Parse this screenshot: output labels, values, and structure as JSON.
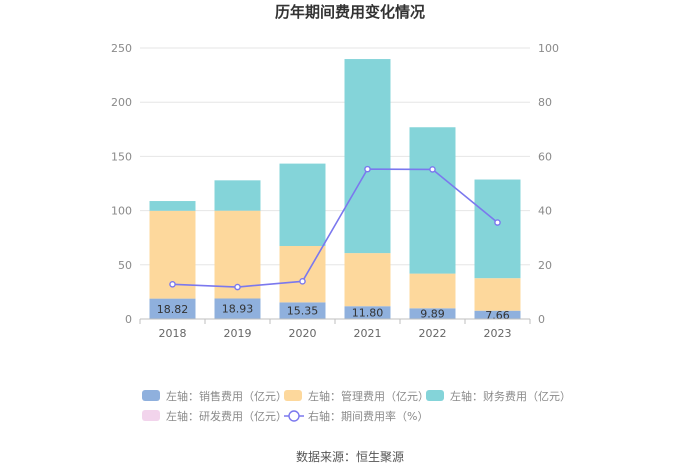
{
  "chart_data": {
    "type": "bar",
    "stacked": true,
    "title": "历年期间费用变化情况",
    "categories": [
      "2018",
      "2019",
      "2020",
      "2021",
      "2022",
      "2023"
    ],
    "left_axis": {
      "min": 0,
      "max": 250,
      "ticks": [
        0,
        50,
        100,
        150,
        200,
        250
      ]
    },
    "right_axis": {
      "min": 0,
      "max": 100,
      "ticks": [
        0,
        20,
        40,
        60,
        80,
        100
      ]
    },
    "series": [
      {
        "name": "销售费用",
        "legend": "左轴：销售费用（亿元）",
        "axis": "left",
        "color": "#8fb0dd",
        "values": [
          18.82,
          18.93,
          15.35,
          11.8,
          9.89,
          7.66
        ],
        "labels": [
          "18.82",
          "18.93",
          "15.35",
          "11.80",
          "9.89",
          "7.66"
        ]
      },
      {
        "name": "管理费用",
        "legend": "左轴：管理费用（亿元）",
        "axis": "left",
        "color": "#fdd89c",
        "values": [
          81,
          81,
          52,
          49,
          32,
          30
        ]
      },
      {
        "name": "财务费用",
        "legend": "左轴：财务费用（亿元）",
        "axis": "left",
        "color": "#84d4d9",
        "values": [
          9,
          28,
          76,
          179,
          135,
          91
        ]
      },
      {
        "name": "研发费用",
        "legend": "左轴：研发费用（亿元）",
        "axis": "left",
        "color": "#f2d4ec",
        "values": [
          0,
          0,
          0,
          0,
          0,
          0
        ]
      }
    ],
    "line": {
      "name": "期间费用率",
      "legend": "右轴：期间费用率（%）",
      "axis": "right",
      "color": "#7b78ee",
      "values": [
        12.8,
        11.8,
        13.9,
        55.3,
        55.2,
        35.6
      ]
    }
  },
  "source": "数据来源：恒生聚源"
}
